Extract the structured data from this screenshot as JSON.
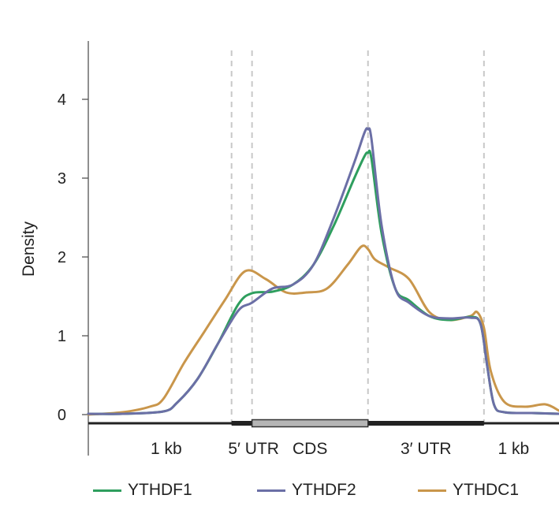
{
  "chart_data": {
    "type": "line",
    "ylabel": "Density",
    "ylim": [
      0,
      4.8
    ],
    "yticks": [
      0,
      1,
      2,
      3,
      4
    ],
    "grid": false,
    "legend_placement": "bottom",
    "regions": [
      "1 kb",
      "5′ UTR",
      "CDS",
      "3′ UTR",
      "1 kb"
    ],
    "region_boundaries": [
      0,
      1,
      1.3,
      3,
      4.7,
      5.8
    ],
    "xlim": [
      -1.1,
      5.8
    ],
    "series": [
      {
        "name": "YTHDF1",
        "color": "#2e9e5e",
        "x": [
          -1.1,
          -0.6,
          0,
          0.2,
          0.5,
          0.8,
          1.1,
          1.3,
          1.6,
          1.9,
          2.2,
          2.5,
          2.8,
          2.95,
          3.0,
          3.05,
          3.2,
          3.4,
          3.6,
          3.9,
          4.2,
          4.5,
          4.65,
          4.75,
          4.85,
          5.0,
          5.4,
          5.8
        ],
        "y": [
          0.01,
          0.01,
          0.04,
          0.15,
          0.45,
          0.9,
          1.4,
          1.54,
          1.56,
          1.65,
          1.9,
          2.4,
          3.0,
          3.28,
          3.32,
          3.25,
          2.3,
          1.6,
          1.45,
          1.25,
          1.2,
          1.24,
          1.15,
          0.6,
          0.12,
          0.03,
          0.02,
          0.01
        ]
      },
      {
        "name": "YTHDF2",
        "color": "#6b6fa6",
        "x": [
          -1.1,
          -0.6,
          0,
          0.2,
          0.5,
          0.8,
          1.1,
          1.3,
          1.6,
          1.9,
          2.2,
          2.5,
          2.8,
          2.95,
          3.0,
          3.05,
          3.2,
          3.4,
          3.6,
          3.9,
          4.2,
          4.5,
          4.65,
          4.75,
          4.85,
          5.0,
          5.4,
          5.8
        ],
        "y": [
          0.01,
          0.01,
          0.04,
          0.15,
          0.45,
          0.9,
          1.32,
          1.42,
          1.6,
          1.65,
          1.9,
          2.5,
          3.2,
          3.58,
          3.62,
          3.5,
          2.4,
          1.6,
          1.42,
          1.25,
          1.22,
          1.23,
          1.15,
          0.6,
          0.12,
          0.03,
          0.02,
          0.01
        ]
      },
      {
        "name": "YTHDC1",
        "color": "#c9964b",
        "x": [
          -1.1,
          -0.6,
          -0.2,
          0,
          0.3,
          0.6,
          0.9,
          1.2,
          1.5,
          1.8,
          2.1,
          2.4,
          2.7,
          2.9,
          3.0,
          3.1,
          3.3,
          3.6,
          3.9,
          4.2,
          4.5,
          4.6,
          4.7,
          4.8,
          5.0,
          5.3,
          5.6,
          5.8
        ],
        "y": [
          0.0,
          0.03,
          0.1,
          0.2,
          0.65,
          1.05,
          1.45,
          1.82,
          1.72,
          1.55,
          1.55,
          1.6,
          1.9,
          2.13,
          2.1,
          1.97,
          1.87,
          1.72,
          1.3,
          1.2,
          1.25,
          1.3,
          1.1,
          0.55,
          0.16,
          0.1,
          0.13,
          0.05
        ]
      }
    ]
  }
}
